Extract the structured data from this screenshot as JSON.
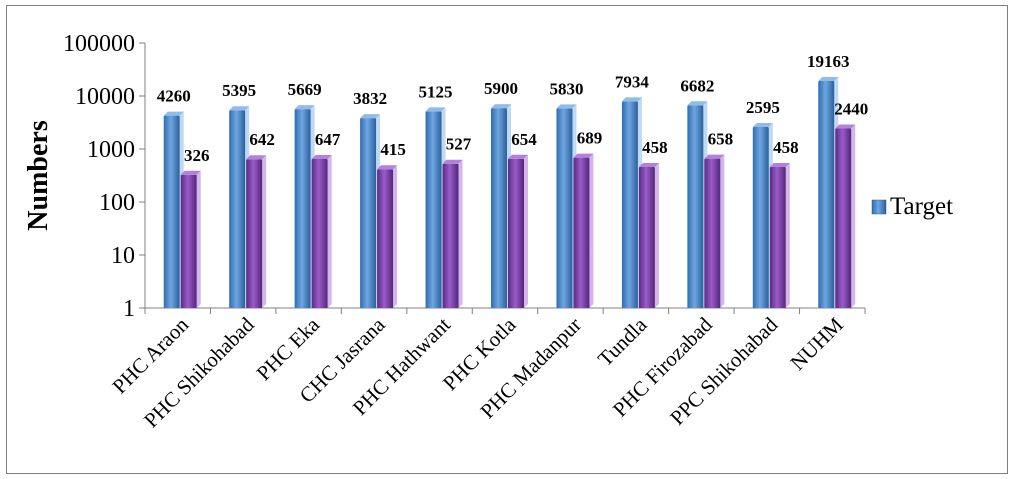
{
  "chart_data": {
    "type": "bar",
    "scale": "log",
    "title": "",
    "xlabel": "",
    "ylabel": "Numbers",
    "ylim": [
      1,
      100000
    ],
    "yticks": [
      "1",
      "10",
      "100",
      "1000",
      "10000",
      "100000"
    ],
    "grid": false,
    "legend_position": "right",
    "categories": [
      "PHC Araon",
      "PHC Shikohabad",
      "PHC Eka",
      "CHC Jasrana",
      "PHC Hathwant",
      "PHC Kotla",
      "PHC Madanpur",
      "Tundla",
      "PHC Firozabad",
      "PPC Shikohabad",
      "NUHM"
    ],
    "series": [
      {
        "name": "Target",
        "color": "#4a86c8",
        "values": [
          4260,
          5395,
          5669,
          3832,
          5125,
          5900,
          5830,
          7934,
          6682,
          2595,
          19163
        ]
      },
      {
        "name": "",
        "color": "#7b3fa8",
        "values": [
          326,
          642,
          647,
          415,
          527,
          654,
          689,
          458,
          658,
          458,
          2440
        ]
      }
    ]
  }
}
